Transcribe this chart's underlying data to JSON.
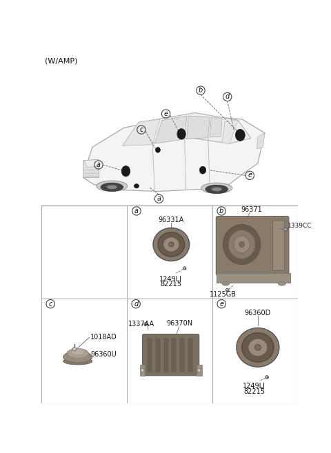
{
  "title": "(W/AMP)",
  "bg_color": "#ffffff",
  "border_color": "#aaaaaa",
  "text_color": "#111111",
  "panels": {
    "a": {
      "label": "a",
      "part1": "96331A",
      "part2_line1": "1249LJ",
      "part2_line2": "82215"
    },
    "b": {
      "label": "b",
      "part1": "96371",
      "part2": "1339CC",
      "part3": "1125GB"
    },
    "c": {
      "label": "c",
      "part1": "1018AD",
      "part2": "96360U"
    },
    "d": {
      "label": "d",
      "part1": "1337AA",
      "part2": "96370N"
    },
    "e": {
      "label": "e",
      "part1": "96360D",
      "part2_line1": "1249LJ",
      "part2_line2": "82215"
    }
  }
}
